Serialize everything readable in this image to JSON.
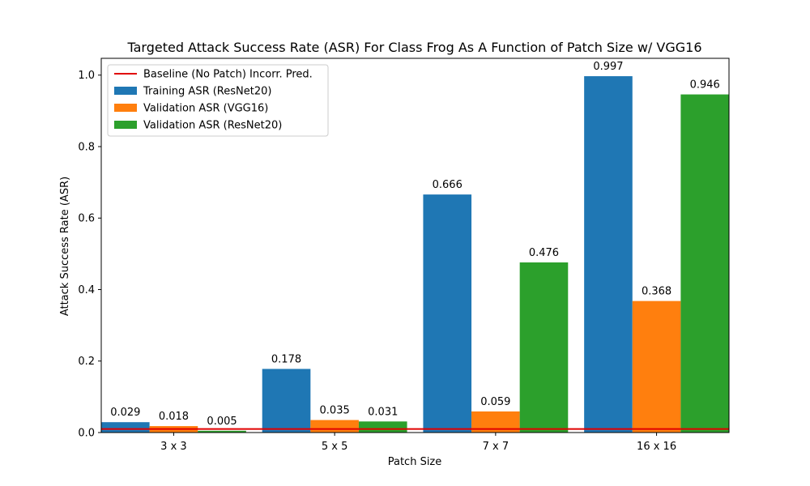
{
  "chart_data": {
    "type": "bar",
    "title": "Targeted Attack Success Rate (ASR) For Class Frog As A Function of Patch Size w/ VGG16",
    "xlabel": "Patch Size",
    "ylabel": "Attack Success Rate (ASR)",
    "categories": [
      "3 x 3",
      "5 x 5",
      "7 x 7",
      "16 x 16"
    ],
    "series": [
      {
        "name": "Training ASR (ResNet20)",
        "color": "#1f77b4",
        "values": [
          0.029,
          0.178,
          0.666,
          0.997
        ],
        "labels": [
          "0.029",
          "0.178",
          "0.666",
          "0.997"
        ]
      },
      {
        "name": "Validation ASR (VGG16)",
        "color": "#ff7f0e",
        "values": [
          0.018,
          0.035,
          0.059,
          0.368
        ],
        "labels": [
          "0.018",
          "0.035",
          "0.059",
          "0.368"
        ]
      },
      {
        "name": "Validation ASR (ResNet20)",
        "color": "#2ca02c",
        "values": [
          0.005,
          0.031,
          0.476,
          0.946
        ],
        "labels": [
          "0.005",
          "0.031",
          "0.476",
          "0.946"
        ]
      }
    ],
    "baseline": {
      "name": "Baseline (No Patch) Incorr. Pred.",
      "value": 0.01,
      "color": "#e00000"
    },
    "ylim": [
      0,
      1.047
    ],
    "yticks": [
      0.0,
      0.2,
      0.4,
      0.6,
      0.8,
      1.0
    ],
    "ytick_labels": [
      "0.0",
      "0.2",
      "0.4",
      "0.6",
      "0.8",
      "1.0"
    ],
    "grid": false,
    "legend_position": "top-left"
  }
}
